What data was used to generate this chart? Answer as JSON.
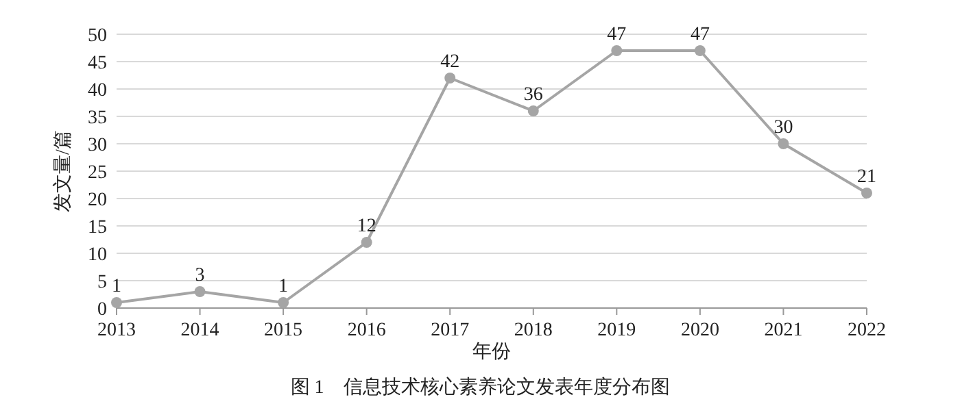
{
  "chart_data": {
    "type": "line",
    "xlabel": "年份",
    "ylabel": "发文量/篇",
    "annotations": [
      "图 1　信息技术核心素养论文发表年度分布图"
    ],
    "x": [
      2013,
      2014,
      2015,
      2016,
      2017,
      2018,
      2019,
      2020,
      2021,
      2022
    ],
    "series": [
      {
        "color": "#a5a5a5",
        "values": [
          1,
          3,
          1,
          12,
          42,
          36,
          47,
          47,
          30,
          21
        ]
      }
    ],
    "xlim": [
      2013,
      2022
    ],
    "xticks": [
      2013,
      2014,
      2015,
      2016,
      2017,
      2018,
      2019,
      2020,
      2021,
      2022
    ],
    "ylim": [
      0,
      50
    ],
    "yticks": [
      0,
      5,
      10,
      15,
      20,
      25,
      30,
      35,
      40,
      45,
      50
    ],
    "grid": "y",
    "marker": "circle",
    "line_style": "solid",
    "data_labels": true
  }
}
